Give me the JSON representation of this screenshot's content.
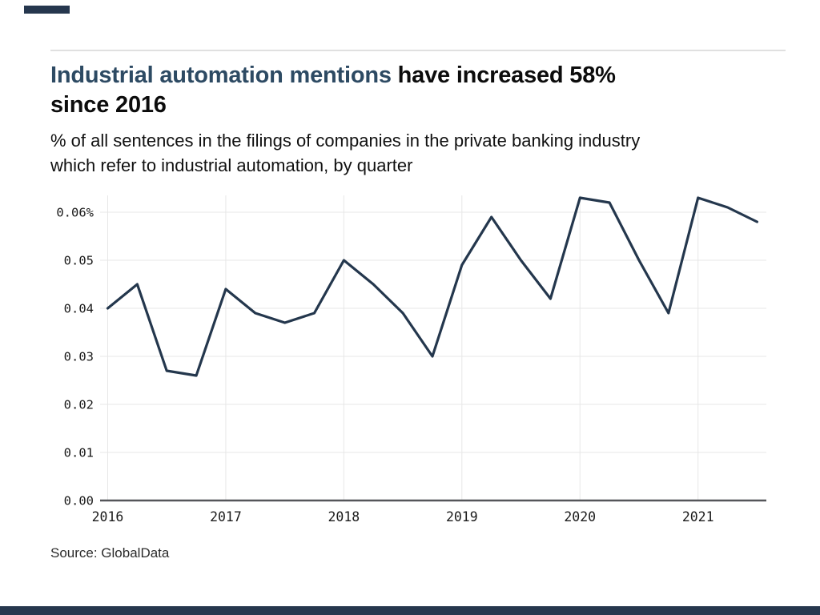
{
  "brand": {
    "navy_bar_color": "#26374e",
    "title_highlight_color": "#2d4a63"
  },
  "header": {
    "title_highlight": "Industrial automation mentions",
    "title_rest": " have increased 58%",
    "title_line2": "since 2016",
    "subtitle_line1": "% of all sentences in the filings of companies in the private banking industry",
    "subtitle_line2": "which refer to industrial automation, by quarter"
  },
  "source": {
    "label": "Source: GlobalData"
  },
  "chart_data": {
    "type": "line",
    "title": "Industrial automation mentions have increased 58% since 2016",
    "subtitle": "% of all sentences in the filings of companies in the private banking industry which refer to industrial automation, by quarter",
    "x": [
      "2016 Q1",
      "2016 Q2",
      "2016 Q3",
      "2016 Q4",
      "2017 Q1",
      "2017 Q2",
      "2017 Q3",
      "2017 Q4",
      "2018 Q1",
      "2018 Q2",
      "2018 Q3",
      "2018 Q4",
      "2019 Q1",
      "2019 Q2",
      "2019 Q3",
      "2019 Q4",
      "2020 Q1",
      "2020 Q2",
      "2020 Q3",
      "2020 Q4",
      "2021 Q1",
      "2021 Q2",
      "2021 Q3"
    ],
    "values": [
      0.04,
      0.045,
      0.027,
      0.026,
      0.044,
      0.039,
      0.037,
      0.039,
      0.05,
      0.045,
      0.039,
      0.03,
      0.049,
      0.059,
      0.05,
      0.042,
      0.063,
      0.062,
      0.05,
      0.039,
      0.063,
      0.061,
      0.058
    ],
    "year_ticks": [
      "2016",
      "2017",
      "2018",
      "2019",
      "2020",
      "2021"
    ],
    "y_tick_labels": [
      "0.00",
      "0.01",
      "0.02",
      "0.03",
      "0.04",
      "0.05",
      "0.06%"
    ],
    "y_tick_step": 0.01,
    "ylim": [
      0,
      0.0635
    ],
    "grid": true,
    "legend": "none",
    "line_color": "#24374d",
    "grid_color": "#e7e7e7",
    "axis_color": "#55565a",
    "tick_text_color": "#1a1a1a"
  }
}
